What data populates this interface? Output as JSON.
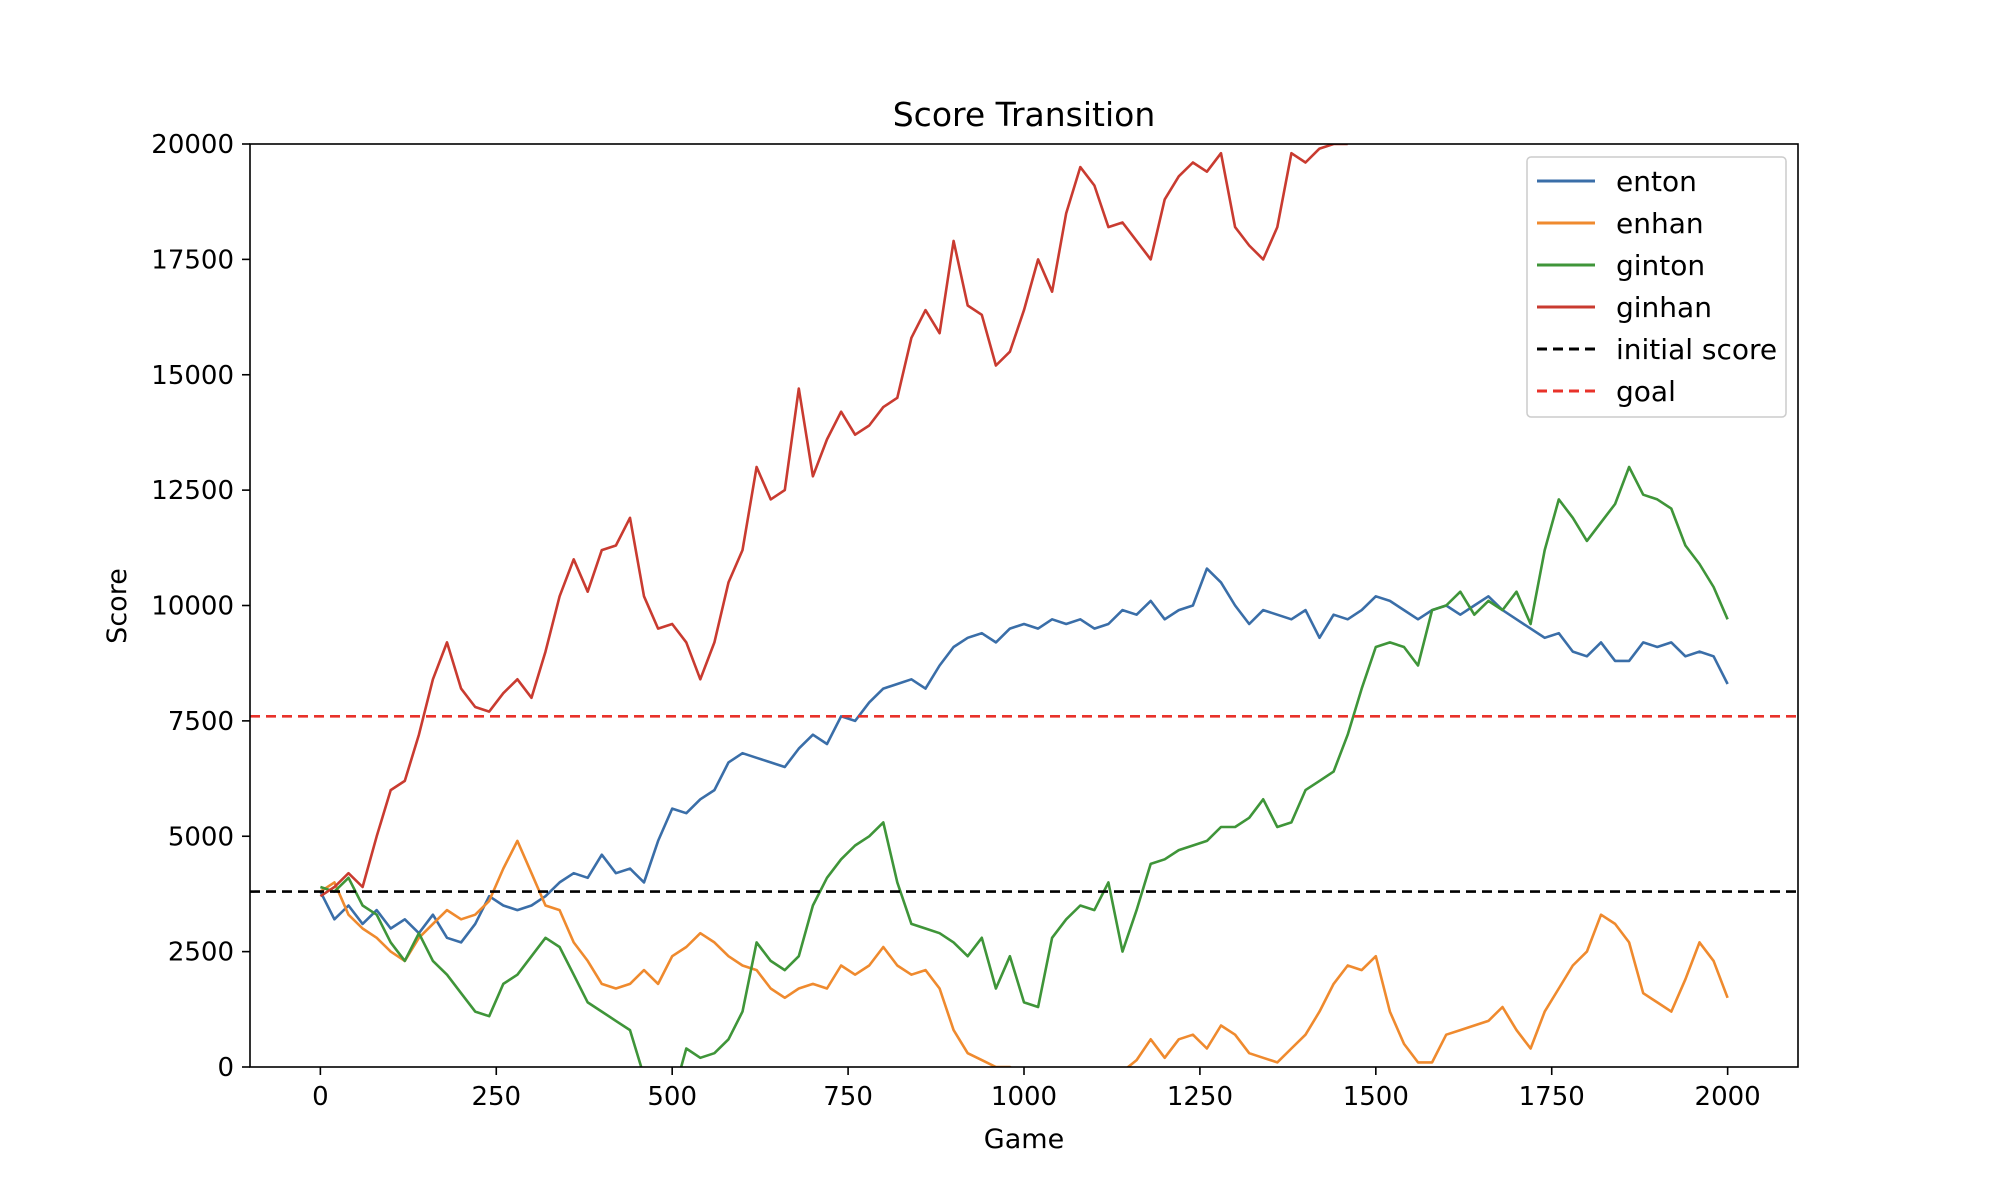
{
  "chart_data": {
    "type": "line",
    "title": "Score Transition",
    "xlabel": "Game",
    "ylabel": "Score",
    "xlim": [
      -100,
      2100
    ],
    "ylim": [
      0,
      20000
    ],
    "x_ticks": [
      0,
      250,
      500,
      750,
      1000,
      1250,
      1500,
      1750,
      2000
    ],
    "y_ticks": [
      0,
      2500,
      5000,
      7500,
      10000,
      12500,
      15000,
      17500,
      20000
    ],
    "grid": false,
    "legend_position": "top-right",
    "series": [
      {
        "name": "enton",
        "color": "#3a6ea8",
        "x": [
          0,
          20,
          40,
          60,
          80,
          100,
          120,
          140,
          160,
          180,
          200,
          220,
          240,
          260,
          280,
          300,
          320,
          340,
          360,
          380,
          400,
          420,
          440,
          460,
          480,
          500,
          520,
          540,
          560,
          580,
          600,
          620,
          640,
          660,
          680,
          700,
          720,
          740,
          760,
          780,
          800,
          820,
          840,
          860,
          880,
          900,
          920,
          940,
          960,
          980,
          1000,
          1020,
          1040,
          1060,
          1080,
          1100,
          1120,
          1140,
          1160,
          1180,
          1200,
          1220,
          1240,
          1260,
          1280,
          1300,
          1320,
          1340,
          1360,
          1380,
          1400,
          1420,
          1440,
          1460,
          1480,
          1500,
          1520,
          1540,
          1560,
          1580,
          1600,
          1620,
          1640,
          1660,
          1680,
          1700,
          1720,
          1740,
          1760,
          1780,
          1800,
          1820,
          1840,
          1860,
          1880,
          1900,
          1920,
          1940,
          1960,
          1980,
          2000
        ],
        "y": [
          3800,
          3200,
          3500,
          3100,
          3400,
          3000,
          3200,
          2900,
          3300,
          2800,
          2700,
          3100,
          3700,
          3500,
          3400,
          3500,
          3700,
          4000,
          4200,
          4100,
          4600,
          4200,
          4300,
          4000,
          4900,
          5600,
          5500,
          5800,
          6000,
          6600,
          6800,
          6700,
          6600,
          6500,
          6900,
          7200,
          7000,
          7600,
          7500,
          7900,
          8200,
          8300,
          8400,
          8200,
          8700,
          9100,
          9300,
          9400,
          9200,
          9500,
          9600,
          9500,
          9700,
          9600,
          9700,
          9500,
          9600,
          9900,
          9800,
          10100,
          9700,
          9900,
          10000,
          10800,
          10500,
          10000,
          9600,
          9900,
          9800,
          9700,
          9900,
          9300,
          9800,
          9700,
          9900,
          10200,
          10100,
          9900,
          9700,
          9900,
          10000,
          9800,
          10000,
          10200,
          9900,
          9700,
          9500,
          9300,
          9400,
          9000,
          8900,
          9200,
          8800,
          8800,
          9200,
          9100,
          9200,
          8900,
          9000,
          8900,
          8300
        ]
      },
      {
        "name": "enhan",
        "color": "#ef8a2e",
        "x": [
          0,
          20,
          40,
          60,
          80,
          100,
          120,
          140,
          160,
          180,
          200,
          220,
          240,
          260,
          280,
          300,
          320,
          340,
          360,
          380,
          400,
          420,
          440,
          460,
          480,
          500,
          520,
          540,
          560,
          580,
          600,
          620,
          640,
          660,
          680,
          700,
          720,
          740,
          760,
          780,
          800,
          820,
          840,
          860,
          880,
          900,
          920,
          940,
          960,
          980,
          1000,
          1020,
          1040,
          1060,
          1080,
          1100,
          1120,
          1140,
          1160,
          1180,
          1200,
          1220,
          1240,
          1260,
          1280,
          1300,
          1320,
          1340,
          1360,
          1380,
          1400,
          1420,
          1440,
          1460,
          1480,
          1500,
          1520,
          1540,
          1560,
          1580,
          1600,
          1620,
          1640,
          1660,
          1680,
          1700,
          1720,
          1740,
          1760,
          1780,
          1800,
          1820,
          1840,
          1860,
          1880,
          1900,
          1920,
          1940,
          1960,
          1980,
          2000
        ],
        "y": [
          3800,
          4000,
          3300,
          3000,
          2800,
          2500,
          2300,
          2800,
          3100,
          3400,
          3200,
          3300,
          3600,
          4300,
          4900,
          4200,
          3500,
          3400,
          2700,
          2300,
          1800,
          1700,
          1800,
          2100,
          1800,
          2400,
          2600,
          2900,
          2700,
          2400,
          2200,
          2100,
          1700,
          1500,
          1700,
          1800,
          1700,
          2200,
          2000,
          2200,
          2600,
          2200,
          2000,
          2100,
          1700,
          800,
          300,
          150,
          0,
          0,
          -200,
          -400,
          -300,
          -200,
          -100,
          -200,
          -150,
          -100,
          150,
          600,
          200,
          600,
          700,
          400,
          900,
          700,
          300,
          200,
          100,
          400,
          700,
          1200,
          1800,
          2200,
          2100,
          2400,
          1200,
          500,
          100,
          100,
          700,
          800,
          900,
          1000,
          1300,
          800,
          400,
          1200,
          1700,
          2200,
          2500,
          3300,
          3100,
          2700,
          1600,
          1400,
          1200,
          1900,
          2700,
          2300,
          1500
        ]
      },
      {
        "name": "ginton",
        "color": "#3f9539",
        "x": [
          0,
          20,
          40,
          60,
          80,
          100,
          120,
          140,
          160,
          180,
          200,
          220,
          240,
          260,
          280,
          300,
          320,
          340,
          360,
          380,
          400,
          420,
          440,
          460,
          480,
          500,
          520,
          540,
          560,
          580,
          600,
          620,
          640,
          660,
          680,
          700,
          720,
          740,
          760,
          780,
          800,
          820,
          840,
          860,
          880,
          900,
          920,
          940,
          960,
          980,
          1000,
          1020,
          1040,
          1060,
          1080,
          1100,
          1120,
          1140,
          1160,
          1180,
          1200,
          1220,
          1240,
          1260,
          1280,
          1300,
          1320,
          1340,
          1360,
          1380,
          1400,
          1420,
          1440,
          1460,
          1480,
          1500,
          1520,
          1540,
          1560,
          1580,
          1600,
          1620,
          1640,
          1660,
          1680,
          1700,
          1720,
          1740,
          1760,
          1780,
          1800,
          1820,
          1840,
          1860,
          1880,
          1900,
          1920,
          1940,
          1960,
          1980,
          2000
        ],
        "y": [
          3900,
          3800,
          4100,
          3500,
          3300,
          2700,
          2300,
          2900,
          2300,
          2000,
          1600,
          1200,
          1100,
          1800,
          2000,
          2400,
          2800,
          2600,
          2000,
          1400,
          1200,
          1000,
          800,
          -200,
          -800,
          -700,
          400,
          200,
          300,
          600,
          1200,
          2700,
          2300,
          2100,
          2400,
          3500,
          4100,
          4500,
          4800,
          5000,
          5300,
          4000,
          3100,
          3000,
          2900,
          2700,
          2400,
          2800,
          1700,
          2400,
          1400,
          1300,
          2800,
          3200,
          3500,
          3400,
          4000,
          2500,
          3400,
          4400,
          4500,
          4700,
          4800,
          4900,
          5200,
          5200,
          5400,
          5800,
          5200,
          5300,
          6000,
          6200,
          6400,
          7200,
          8200,
          9100,
          9200,
          9100,
          8700,
          9900,
          10000,
          10300,
          9800,
          10100,
          9900,
          10300,
          9600,
          11200,
          12300,
          11900,
          11400,
          11800,
          12200,
          13000,
          12400,
          12300,
          12100,
          11300,
          10900,
          10400,
          9700
        ]
      },
      {
        "name": "ginhan",
        "color": "#c93b30",
        "x": [
          0,
          20,
          40,
          60,
          80,
          100,
          120,
          140,
          160,
          180,
          200,
          220,
          240,
          260,
          280,
          300,
          320,
          340,
          360,
          380,
          400,
          420,
          440,
          460,
          480,
          500,
          520,
          540,
          560,
          580,
          600,
          620,
          640,
          660,
          680,
          700,
          720,
          740,
          760,
          780,
          800,
          820,
          840,
          860,
          880,
          900,
          920,
          940,
          960,
          980,
          1000,
          1020,
          1040,
          1060,
          1080,
          1100,
          1120,
          1140,
          1160,
          1180,
          1200,
          1220,
          1240,
          1260,
          1280,
          1300,
          1320,
          1340,
          1360,
          1380,
          1400,
          1420,
          1440,
          1460
        ],
        "y": [
          3700,
          3900,
          4200,
          3900,
          5000,
          6000,
          6200,
          7200,
          8400,
          9200,
          8200,
          7800,
          7700,
          8100,
          8400,
          8000,
          9000,
          10200,
          11000,
          10300,
          11200,
          11300,
          11900,
          10200,
          9500,
          9600,
          9200,
          8400,
          9200,
          10500,
          11200,
          13000,
          12300,
          12500,
          14700,
          12800,
          13600,
          14200,
          13700,
          13900,
          14300,
          14500,
          15800,
          16400,
          15900,
          17900,
          16500,
          16300,
          15200,
          15500,
          16400,
          17500,
          16800,
          18500,
          19500,
          19100,
          18200,
          18300,
          17900,
          17500,
          18800,
          19300,
          19600,
          19400,
          19800,
          18200,
          17800,
          17500,
          18200,
          19800,
          19600,
          19900,
          20000,
          20000
        ]
      }
    ],
    "reference_lines": [
      {
        "name": "initial score",
        "value": 3800,
        "color": "#000000",
        "style": "dashed"
      },
      {
        "name": "goal",
        "value": 7600,
        "color": "#e8322a",
        "style": "dashed"
      }
    ]
  }
}
